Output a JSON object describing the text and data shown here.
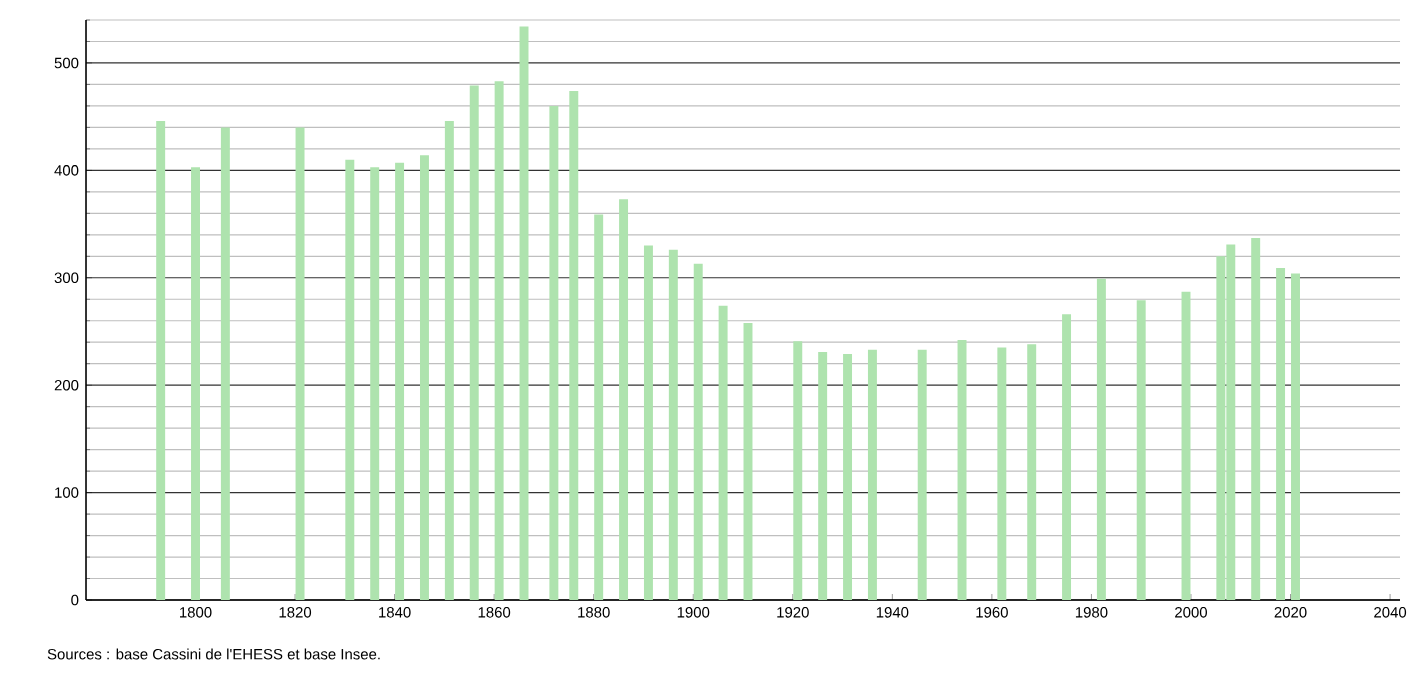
{
  "chart_data": {
    "type": "bar",
    "annotations": [
      "Sources : base Cassini de l'EHESS et base Insee."
    ],
    "x": [
      1793,
      1800,
      1806,
      1821,
      1831,
      1836,
      1841,
      1846,
      1851,
      1856,
      1861,
      1866,
      1872,
      1876,
      1881,
      1886,
      1891,
      1896,
      1901,
      1906,
      1911,
      1921,
      1926,
      1931,
      1936,
      1946,
      1954,
      1962,
      1968,
      1975,
      1982,
      1990,
      1999,
      2006,
      2008,
      2013,
      2018,
      2021
    ],
    "values": [
      446,
      403,
      440,
      440,
      410,
      403,
      407,
      414,
      446,
      479,
      483,
      534,
      460,
      474,
      359,
      373,
      330,
      326,
      313,
      274,
      258,
      241,
      231,
      229,
      233,
      233,
      242,
      235,
      238,
      266,
      299,
      279,
      287,
      320,
      331,
      337,
      309,
      304
    ],
    "color": "#aee3ae",
    "xlim": [
      1778,
      2042
    ],
    "xticks": [
      1800,
      1820,
      1840,
      1860,
      1880,
      1900,
      1920,
      1940,
      1960,
      1980,
      2000,
      2020,
      2040
    ],
    "ylim": [
      0,
      540
    ],
    "yticks": [
      0,
      {
        "value": 20,
        "label": null
      },
      {
        "value": 40,
        "label": null
      },
      {
        "value": 60,
        "label": null
      },
      {
        "value": 80,
        "label": null
      },
      100,
      {
        "value": 120,
        "label": null
      },
      {
        "value": 140,
        "label": null
      },
      {
        "value": 160,
        "label": null
      },
      {
        "value": 180,
        "label": null
      },
      200,
      {
        "value": 220,
        "label": null
      },
      {
        "value": 240,
        "label": null
      },
      {
        "value": 260,
        "label": null
      },
      {
        "value": 280,
        "label": null
      },
      300,
      {
        "value": 320,
        "label": null
      },
      {
        "value": 340,
        "label": null
      },
      {
        "value": 360,
        "label": null
      },
      {
        "value": 380,
        "label": null
      },
      400,
      {
        "value": 420,
        "label": null
      },
      {
        "value": 440,
        "label": null
      },
      {
        "value": 460,
        "label": null
      },
      {
        "value": 480,
        "label": null
      },
      500,
      {
        "value": 520,
        "label": null
      },
      {
        "value": 540,
        "label": null
      }
    ],
    "grid": "y"
  }
}
